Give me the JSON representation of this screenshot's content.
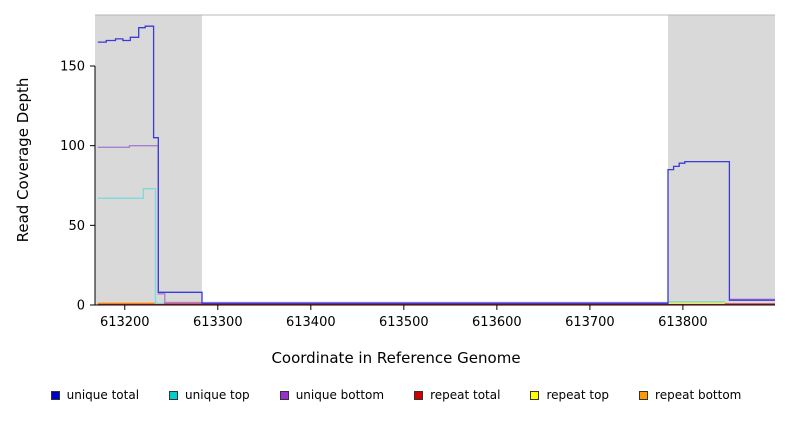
{
  "chart_data": {
    "type": "line",
    "title": "",
    "xlabel": "Coordinate in Reference Genome",
    "ylabel": "Read Coverage Depth",
    "xlim": [
      613168,
      613899
    ],
    "ylim": [
      0,
      182
    ],
    "xticks": [
      613200,
      613300,
      613400,
      613500,
      613600,
      613700,
      613800
    ],
    "yticks": [
      0,
      50,
      100,
      150
    ],
    "grid": false,
    "legend_position": "bottom",
    "plot_background": "#ffffff",
    "shaded_color": "#d9d9d9",
    "frame_top_color": "#b8b8b8",
    "axis_color": "#000000",
    "shaded_regions": [
      [
        613168,
        613283
      ],
      [
        613784,
        613899
      ]
    ],
    "series": [
      {
        "name": "repeat total",
        "color": "#cc2222",
        "segments": [
          [
            [
              613171,
              0.6
            ],
            [
              613899,
              0.6
            ]
          ]
        ]
      },
      {
        "name": "repeat top",
        "color": "#eeee44",
        "segments": [
          [
            [
              613784,
              1
            ],
            [
              613845,
              1
            ]
          ]
        ]
      },
      {
        "name": "repeat bottom",
        "color": "#ffa020",
        "segments": [
          [
            [
              613171,
              1.2
            ],
            [
              613235,
              1.2
            ]
          ]
        ]
      },
      {
        "name": "unique top",
        "color": "#7fd9d9",
        "segments": [
          [
            [
              613171,
              67
            ],
            [
              613220,
              67
            ],
            [
              613220,
              73
            ],
            [
              613233,
              73
            ],
            [
              613233,
              1
            ],
            [
              613242,
              1
            ]
          ],
          [
            [
              613784,
              2
            ],
            [
              613845,
              2
            ]
          ]
        ]
      },
      {
        "name": "unique bottom",
        "color": "#a97fd4",
        "segments": [
          [
            [
              613171,
              99
            ],
            [
              613205,
              99
            ],
            [
              613205,
              100
            ],
            [
              613236,
              100
            ],
            [
              613236,
              7
            ],
            [
              613243,
              7
            ],
            [
              613243,
              1.6
            ],
            [
              613784,
              1.6
            ]
          ],
          [
            [
              613850,
              3.6
            ],
            [
              613899,
              3.6
            ]
          ]
        ]
      },
      {
        "name": "unique total",
        "color": "#3b3bd6",
        "segments": [
          [
            [
              613171,
              165
            ],
            [
              613180,
              165
            ],
            [
              613180,
              166
            ],
            [
              613190,
              166
            ],
            [
              613190,
              167
            ],
            [
              613198,
              167
            ],
            [
              613198,
              166
            ],
            [
              613206,
              166
            ],
            [
              613206,
              168
            ],
            [
              613215,
              168
            ],
            [
              613215,
              174
            ],
            [
              613222,
              174
            ],
            [
              613222,
              175
            ],
            [
              613231,
              175
            ],
            [
              613231,
              105
            ],
            [
              613236,
              105
            ],
            [
              613236,
              8
            ],
            [
              613283,
              8
            ],
            [
              613283,
              1
            ],
            [
              613784,
              1
            ],
            [
              613784,
              85
            ],
            [
              613790,
              85
            ],
            [
              613790,
              87
            ],
            [
              613796,
              87
            ],
            [
              613796,
              89
            ],
            [
              613802,
              89
            ],
            [
              613802,
              90
            ],
            [
              613850,
              90
            ],
            [
              613850,
              3
            ],
            [
              613899,
              3
            ]
          ]
        ]
      }
    ],
    "legend": [
      {
        "label": "unique total",
        "color": "#0000cd"
      },
      {
        "label": "unique top",
        "color": "#00cdcd"
      },
      {
        "label": "unique bottom",
        "color": "#9932cc"
      },
      {
        "label": "repeat total",
        "color": "#cd0000"
      },
      {
        "label": "repeat top",
        "color": "#ffff00"
      },
      {
        "label": "repeat bottom",
        "color": "#ff9900"
      }
    ]
  }
}
